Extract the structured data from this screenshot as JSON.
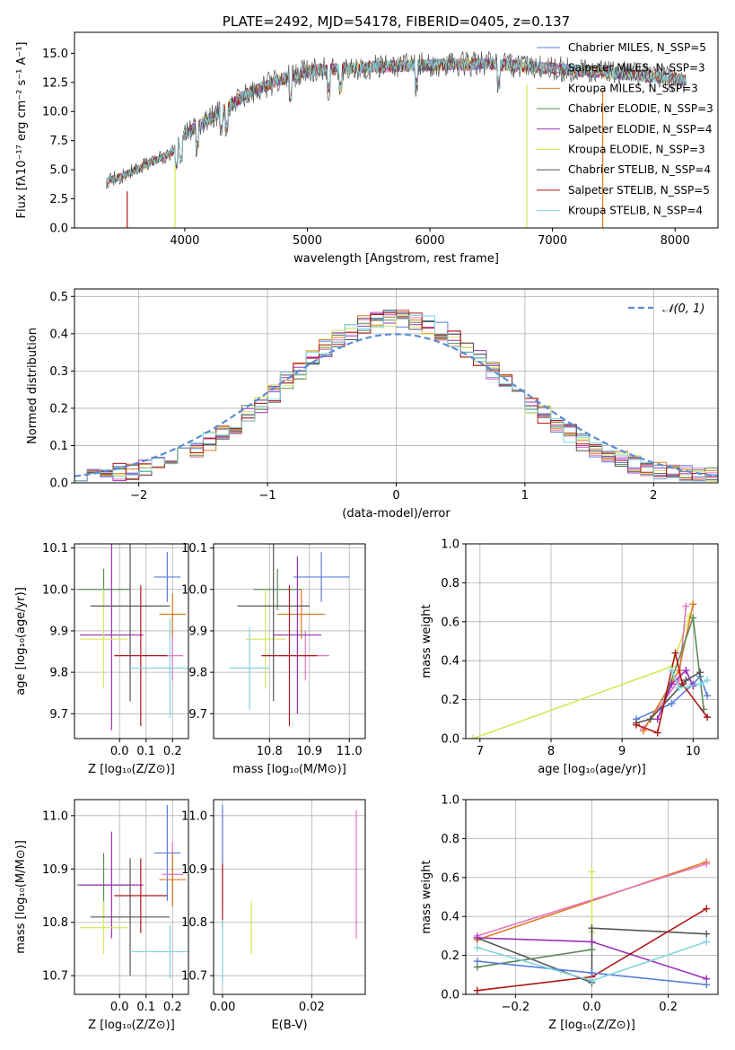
{
  "colors": {
    "Chabrier MILES": "#5a7fd6",
    "Salpeter MILES": "#e377c2",
    "Kroupa MILES": "#e07b1f",
    "Chabrier ELODIE": "#5c8a5c",
    "Salpeter ELODIE": "#9b30b8",
    "Kroupa ELODIE": "#d4e857",
    "Chabrier STELIB": "#555555",
    "Salpeter STELIB": "#b01818",
    "Kroupa STELIB": "#7fd4dc",
    "normal": "#5b8bd6"
  },
  "chart_data": [
    {
      "id": "spectrum",
      "type": "line",
      "title": "PLATE=2492, MJD=54178, FIBERID=0405, z=0.137",
      "xlabel": "wavelength [Angstrom, rest frame]",
      "ylabel": "Flux [fλ10⁻¹⁷ erg cm⁻² s⁻¹ A⁻¹]",
      "xlim": [
        3100,
        8350
      ],
      "ylim": [
        0,
        16.8
      ],
      "xticks": [
        4000,
        5000,
        6000,
        7000,
        8000
      ],
      "yticks": [
        0.0,
        2.5,
        5.0,
        7.5,
        10.0,
        12.5,
        15.0
      ],
      "legend_position": "right",
      "legend": [
        "Chabrier MILES, N_SSP=5",
        "Salpeter MILES, N_SSP=3",
        "Kroupa MILES, N_SSP=3",
        "Chabrier ELODIE, N_SSP=3",
        "Salpeter ELODIE, N_SSP=4",
        "Kroupa ELODIE, N_SSP=3",
        "Chabrier STELIB, N_SSP=4",
        "Salpeter STELIB, N_SSP=5",
        "Kroupa STELIB, N_SSP=4"
      ],
      "continuum": {
        "x": [
          3350,
          3500,
          3700,
          3900,
          4000,
          4300,
          4500,
          4800,
          5000,
          5500,
          6000,
          6500,
          7000,
          7500,
          8000,
          8100
        ],
        "y": [
          4.0,
          4.5,
          5.5,
          6.5,
          8.0,
          10.0,
          11.5,
          12.8,
          13.5,
          13.8,
          14.0,
          14.1,
          13.7,
          13.3,
          12.8,
          12.6
        ]
      },
      "dropouts": [
        {
          "x": 3530,
          "series": "Salpeter STELIB"
        },
        {
          "x": 3920,
          "series": "Kroupa ELODIE"
        },
        {
          "x": 6790,
          "series": "Kroupa ELODIE"
        },
        {
          "x": 7410,
          "series": "Kroupa MILES"
        }
      ]
    },
    {
      "id": "residuals",
      "type": "step",
      "xlabel": "(data-model)/error",
      "ylabel": "Normed distribution",
      "xlim": [
        -2.5,
        2.5
      ],
      "ylim": [
        0,
        0.52
      ],
      "xticks": [
        -2,
        -1,
        0,
        1,
        2
      ],
      "yticks": [
        0.0,
        0.1,
        0.2,
        0.3,
        0.4,
        0.5
      ],
      "legend": [
        "𝒩(0, 1)"
      ],
      "legend_position": "top-right",
      "bins": 50,
      "bin_range": [
        -2.5,
        2.5
      ]
    },
    {
      "id": "age_vs_Z",
      "type": "errorbar",
      "xlabel": "Z [log₁₀(Z/Z⊙)]",
      "ylabel": "age  [log₁₀(age/yr)]",
      "xlim": [
        -0.17,
        0.26
      ],
      "ylim": [
        9.64,
        10.11
      ],
      "xticks": [
        0.0,
        0.1,
        0.2
      ],
      "yticks": [
        9.7,
        9.8,
        9.9,
        10.0,
        10.1
      ],
      "points": [
        {
          "series": "Chabrier MILES",
          "x": 0.18,
          "y": 10.03,
          "xerr": 0.05,
          "yerr": 0.06
        },
        {
          "series": "Salpeter MILES",
          "x": 0.2,
          "y": 9.84,
          "xerr": 0.04,
          "yerr": 0.06
        },
        {
          "series": "Kroupa MILES",
          "x": 0.2,
          "y": 9.94,
          "xerr": 0.05,
          "yerr": 0.05
        },
        {
          "series": "Chabrier ELODIE",
          "x": -0.06,
          "y": 10.0,
          "xerr": 0.1,
          "yerr": 0.05
        },
        {
          "series": "Salpeter ELODIE",
          "x": -0.03,
          "y": 9.89,
          "xerr": 0.12,
          "yerr": 0.23
        },
        {
          "series": "Kroupa ELODIE",
          "x": -0.06,
          "y": 9.88,
          "xerr": 0.09,
          "yerr": 0.12
        },
        {
          "series": "Chabrier STELIB",
          "x": 0.04,
          "y": 9.96,
          "xerr": 0.15,
          "yerr": 0.23
        },
        {
          "series": "Salpeter STELIB",
          "x": 0.08,
          "y": 9.84,
          "xerr": 0.1,
          "yerr": 0.17
        },
        {
          "series": "Kroupa STELIB",
          "x": 0.19,
          "y": 9.81,
          "xerr": 0.15,
          "yerr": 0.12
        }
      ]
    },
    {
      "id": "age_vs_mass",
      "type": "errorbar",
      "xlabel": "mass [log₁₀(M/M⊙)]",
      "ylabel": "",
      "xlim": [
        10.66,
        11.04
      ],
      "ylim": [
        9.64,
        10.11
      ],
      "xticks": [
        10.8,
        10.9,
        11.0
      ],
      "yticks": [
        9.7,
        9.8,
        9.9,
        10.0,
        10.1
      ],
      "points": [
        {
          "series": "Chabrier MILES",
          "x": 10.93,
          "y": 10.03,
          "xerr": 0.07,
          "yerr": 0.06
        },
        {
          "series": "Salpeter MILES",
          "x": 10.89,
          "y": 9.84,
          "xerr": 0.06,
          "yerr": 0.06
        },
        {
          "series": "Kroupa MILES",
          "x": 10.88,
          "y": 9.94,
          "xerr": 0.06,
          "yerr": 0.06
        },
        {
          "series": "Chabrier ELODIE",
          "x": 10.82,
          "y": 10.0,
          "xerr": 0.06,
          "yerr": 0.05
        },
        {
          "series": "Salpeter ELODIE",
          "x": 10.87,
          "y": 9.89,
          "xerr": 0.06,
          "yerr": 0.19
        },
        {
          "series": "Kroupa ELODIE",
          "x": 10.79,
          "y": 9.88,
          "xerr": 0.05,
          "yerr": 0.12
        },
        {
          "series": "Chabrier STELIB",
          "x": 10.81,
          "y": 9.96,
          "xerr": 0.09,
          "yerr": 0.23
        },
        {
          "series": "Salpeter STELIB",
          "x": 10.85,
          "y": 9.84,
          "xerr": 0.07,
          "yerr": 0.17
        },
        {
          "series": "Kroupa STELIB",
          "x": 10.75,
          "y": 9.81,
          "xerr": 0.05,
          "yerr": 0.1
        }
      ]
    },
    {
      "id": "weight_vs_age",
      "type": "line",
      "xlabel": "age  [log₁₀(age/yr)]",
      "ylabel": "mass weight",
      "xlim": [
        6.8,
        10.35
      ],
      "ylim": [
        0,
        1.0
      ],
      "xticks": [
        7,
        8,
        9,
        10
      ],
      "yticks": [
        0.0,
        0.2,
        0.4,
        0.6,
        0.8,
        1.0
      ],
      "grid": true,
      "series": [
        {
          "series": "Kroupa ELODIE",
          "x": [
            6.9,
            9.7,
            9.95
          ],
          "y": [
            0.0,
            0.37,
            0.63
          ]
        },
        {
          "series": "Chabrier MILES",
          "x": [
            9.2,
            9.7,
            10.0,
            10.1,
            10.2
          ],
          "y": [
            0.1,
            0.18,
            0.28,
            0.32,
            0.22
          ]
        },
        {
          "series": "Salpeter MILES",
          "x": [
            9.3,
            9.8,
            9.9
          ],
          "y": [
            0.05,
            0.3,
            0.68
          ]
        },
        {
          "series": "Kroupa MILES",
          "x": [
            9.3,
            9.8,
            10.0
          ],
          "y": [
            0.04,
            0.35,
            0.69
          ]
        },
        {
          "series": "Chabrier ELODIE",
          "x": [
            9.6,
            10.0,
            10.15
          ],
          "y": [
            0.2,
            0.62,
            0.15
          ]
        },
        {
          "series": "Salpeter ELODIE",
          "x": [
            9.5,
            9.7,
            9.9,
            10.0
          ],
          "y": [
            0.1,
            0.28,
            0.35,
            0.27
          ]
        },
        {
          "series": "Chabrier STELIB",
          "x": [
            9.2,
            9.4,
            9.9,
            10.1
          ],
          "y": [
            0.08,
            0.1,
            0.3,
            0.34
          ]
        },
        {
          "series": "Salpeter STELIB",
          "x": [
            9.2,
            9.5,
            9.75,
            9.85,
            10.2
          ],
          "y": [
            0.07,
            0.03,
            0.44,
            0.28,
            0.11
          ]
        },
        {
          "series": "Kroupa STELIB",
          "x": [
            9.7,
            9.8,
            10.1,
            10.2
          ],
          "y": [
            0.35,
            0.26,
            0.28,
            0.3
          ]
        }
      ]
    },
    {
      "id": "mass_vs_Z",
      "type": "errorbar",
      "xlabel": "Z [log₁₀(Z/Z⊙)]",
      "ylabel": "mass [log₁₀(M/M⊙)]",
      "xlim": [
        -0.17,
        0.26
      ],
      "ylim": [
        10.665,
        11.03
      ],
      "xticks": [
        0.0,
        0.1,
        0.2
      ],
      "yticks": [
        10.7,
        10.8,
        10.9,
        11.0
      ],
      "points": [
        {
          "series": "Chabrier MILES",
          "x": 0.18,
          "y": 10.93,
          "xerr": 0.05,
          "yerr": 0.09
        },
        {
          "series": "Salpeter MILES",
          "x": 0.2,
          "y": 10.89,
          "xerr": 0.04,
          "yerr": 0.06
        },
        {
          "series": "Kroupa MILES",
          "x": 0.2,
          "y": 10.88,
          "xerr": 0.05,
          "yerr": 0.05
        },
        {
          "series": "Chabrier ELODIE",
          "x": -0.06,
          "y": 10.87,
          "xerr": 0.1,
          "yerr": 0.06
        },
        {
          "series": "Salpeter ELODIE",
          "x": -0.03,
          "y": 10.87,
          "xerr": 0.12,
          "yerr": 0.1
        },
        {
          "series": "Kroupa ELODIE",
          "x": -0.06,
          "y": 10.79,
          "xerr": 0.09,
          "yerr": 0.05
        },
        {
          "series": "Chabrier STELIB",
          "x": 0.04,
          "y": 10.81,
          "xerr": 0.15,
          "yerr": 0.11
        },
        {
          "series": "Salpeter STELIB",
          "x": 0.08,
          "y": 10.85,
          "xerr": 0.1,
          "yerr": 0.07
        },
        {
          "series": "Kroupa STELIB",
          "x": 0.19,
          "y": 10.745,
          "xerr": 0.15,
          "yerr": 0.05
        }
      ]
    },
    {
      "id": "mass_vs_ebv",
      "type": "errorbar",
      "xlabel": "E(B-V)",
      "ylabel": "",
      "xlim": [
        -0.002,
        0.032
      ],
      "ylim": [
        10.665,
        11.03
      ],
      "xticks": [
        0.0,
        0.02
      ],
      "yticks": [
        10.7,
        10.8,
        10.9,
        11.0
      ],
      "points": [
        {
          "series": "Chabrier MILES",
          "x": 0.0,
          "y": 10.93,
          "xerr": 0,
          "yerr": 0.09
        },
        {
          "series": "Salpeter MILES",
          "x": 0.03,
          "y": 10.89,
          "xerr": 0,
          "yerr": 0.12
        },
        {
          "series": "Salpeter STELIB",
          "x": 0.0,
          "y": 10.85,
          "xerr": 0,
          "yerr": 0.06
        },
        {
          "series": "Kroupa ELODIE",
          "x": 0.0065,
          "y": 10.79,
          "xerr": 0,
          "yerr": 0.05
        },
        {
          "series": "Kroupa STELIB",
          "x": 0.0,
          "y": 10.745,
          "xerr": 0,
          "yerr": 0.06
        }
      ]
    },
    {
      "id": "weight_vs_Z",
      "type": "line",
      "xlabel": "Z [log₁₀(Z/Z⊙)]",
      "ylabel": "mass weight",
      "xlim": [
        -0.33,
        0.33
      ],
      "ylim": [
        0,
        1.0
      ],
      "xticks": [
        -0.2,
        0.0,
        0.2
      ],
      "yticks": [
        0.0,
        0.2,
        0.4,
        0.6,
        0.8,
        1.0
      ],
      "grid": true,
      "series": [
        {
          "series": "Kroupa MILES",
          "x": [
            -0.3,
            0.3
          ],
          "y": [
            0.28,
            0.68
          ]
        },
        {
          "series": "Salpeter MILES",
          "x": [
            -0.3,
            0.3
          ],
          "y": [
            0.3,
            0.67
          ]
        },
        {
          "series": "Kroupa ELODIE",
          "x": [
            0.0,
            0.0
          ],
          "y": [
            0.32,
            0.63
          ]
        },
        {
          "series": "Chabrier STELIB",
          "x": [
            -0.3,
            0.0,
            0.0,
            0.3
          ],
          "y": [
            0.29,
            0.06,
            0.34,
            0.31
          ]
        },
        {
          "series": "Salpeter ELODIE",
          "x": [
            -0.3,
            0.0,
            0.3
          ],
          "y": [
            0.29,
            0.27,
            0.08
          ]
        },
        {
          "series": "Salpeter STELIB",
          "x": [
            -0.3,
            0.0,
            0.3
          ],
          "y": [
            0.02,
            0.09,
            0.44
          ]
        },
        {
          "series": "Chabrier ELODIE",
          "x": [
            -0.3,
            0.0
          ],
          "y": [
            0.14,
            0.23
          ]
        },
        {
          "series": "Chabrier MILES",
          "x": [
            -0.3,
            0.0,
            0.3
          ],
          "y": [
            0.17,
            0.11,
            0.05
          ]
        },
        {
          "series": "Kroupa STELIB",
          "x": [
            -0.3,
            0.0,
            0.3
          ],
          "y": [
            0.24,
            0.07,
            0.27
          ]
        }
      ]
    }
  ]
}
